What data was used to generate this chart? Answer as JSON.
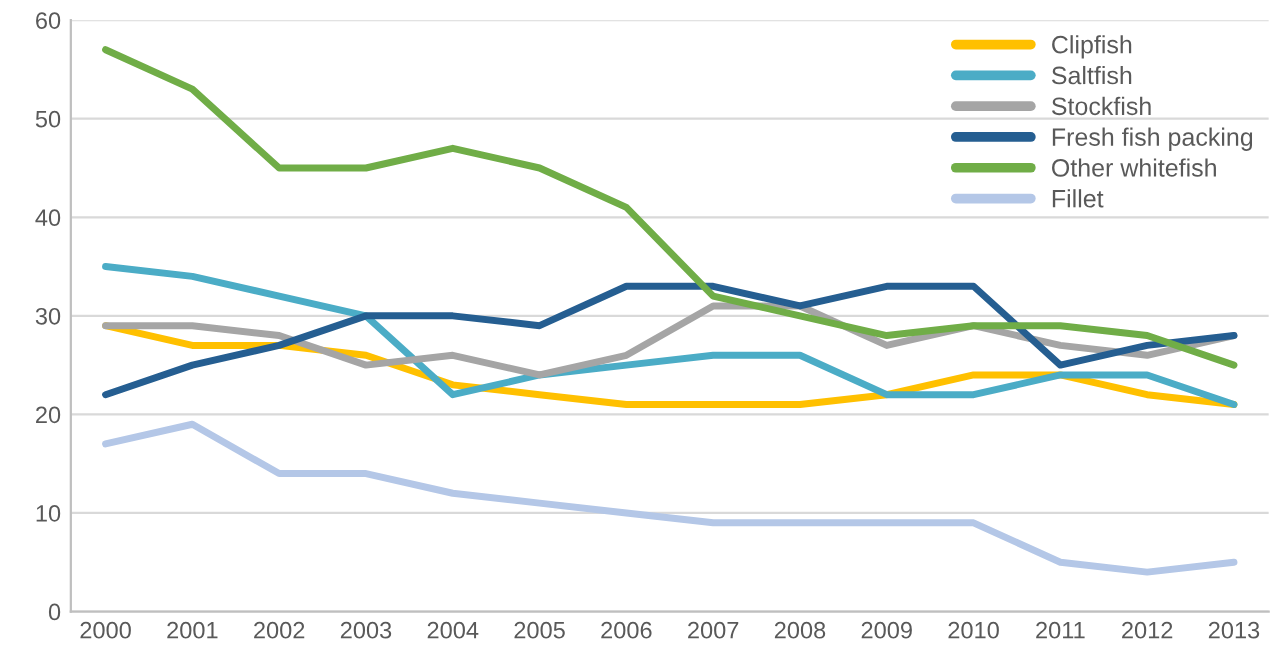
{
  "chart_data": {
    "type": "line",
    "categories": [
      "2000",
      "2001",
      "2002",
      "2003",
      "2004",
      "2005",
      "2006",
      "2007",
      "2008",
      "2009",
      "2010",
      "2011",
      "2012",
      "2013"
    ],
    "series": [
      {
        "name": "Clipfish",
        "color": "#ffc000",
        "values": [
          29,
          27,
          27,
          26,
          23,
          22,
          21,
          21,
          21,
          22,
          24,
          24,
          22,
          21
        ]
      },
      {
        "name": "Saltfish",
        "color": "#4bacc6",
        "values": [
          35,
          34,
          32,
          30,
          22,
          24,
          25,
          26,
          26,
          22,
          22,
          24,
          24,
          21
        ]
      },
      {
        "name": "Stockfish",
        "color": "#a5a5a5",
        "values": [
          29,
          29,
          28,
          25,
          26,
          24,
          26,
          31,
          31,
          27,
          29,
          27,
          26,
          28
        ]
      },
      {
        "name": "Fresh fish packing",
        "color": "#255e91",
        "values": [
          22,
          25,
          27,
          30,
          30,
          29,
          33,
          33,
          31,
          33,
          33,
          25,
          27,
          28
        ]
      },
      {
        "name": "Other whitefish",
        "color": "#70ad47",
        "values": [
          57,
          53,
          45,
          45,
          47,
          45,
          41,
          32,
          30,
          28,
          29,
          29,
          28,
          25
        ]
      },
      {
        "name": "Fillet",
        "color": "#b4c7e7",
        "values": [
          17,
          19,
          14,
          14,
          12,
          11,
          10,
          9,
          9,
          9,
          9,
          5,
          4,
          5
        ]
      }
    ],
    "ylim": [
      0,
      60
    ],
    "yticks": [
      0,
      10,
      20,
      30,
      40,
      50,
      60
    ],
    "grid": "y",
    "legend": "top right",
    "marker": "none",
    "line_style": "solid"
  }
}
